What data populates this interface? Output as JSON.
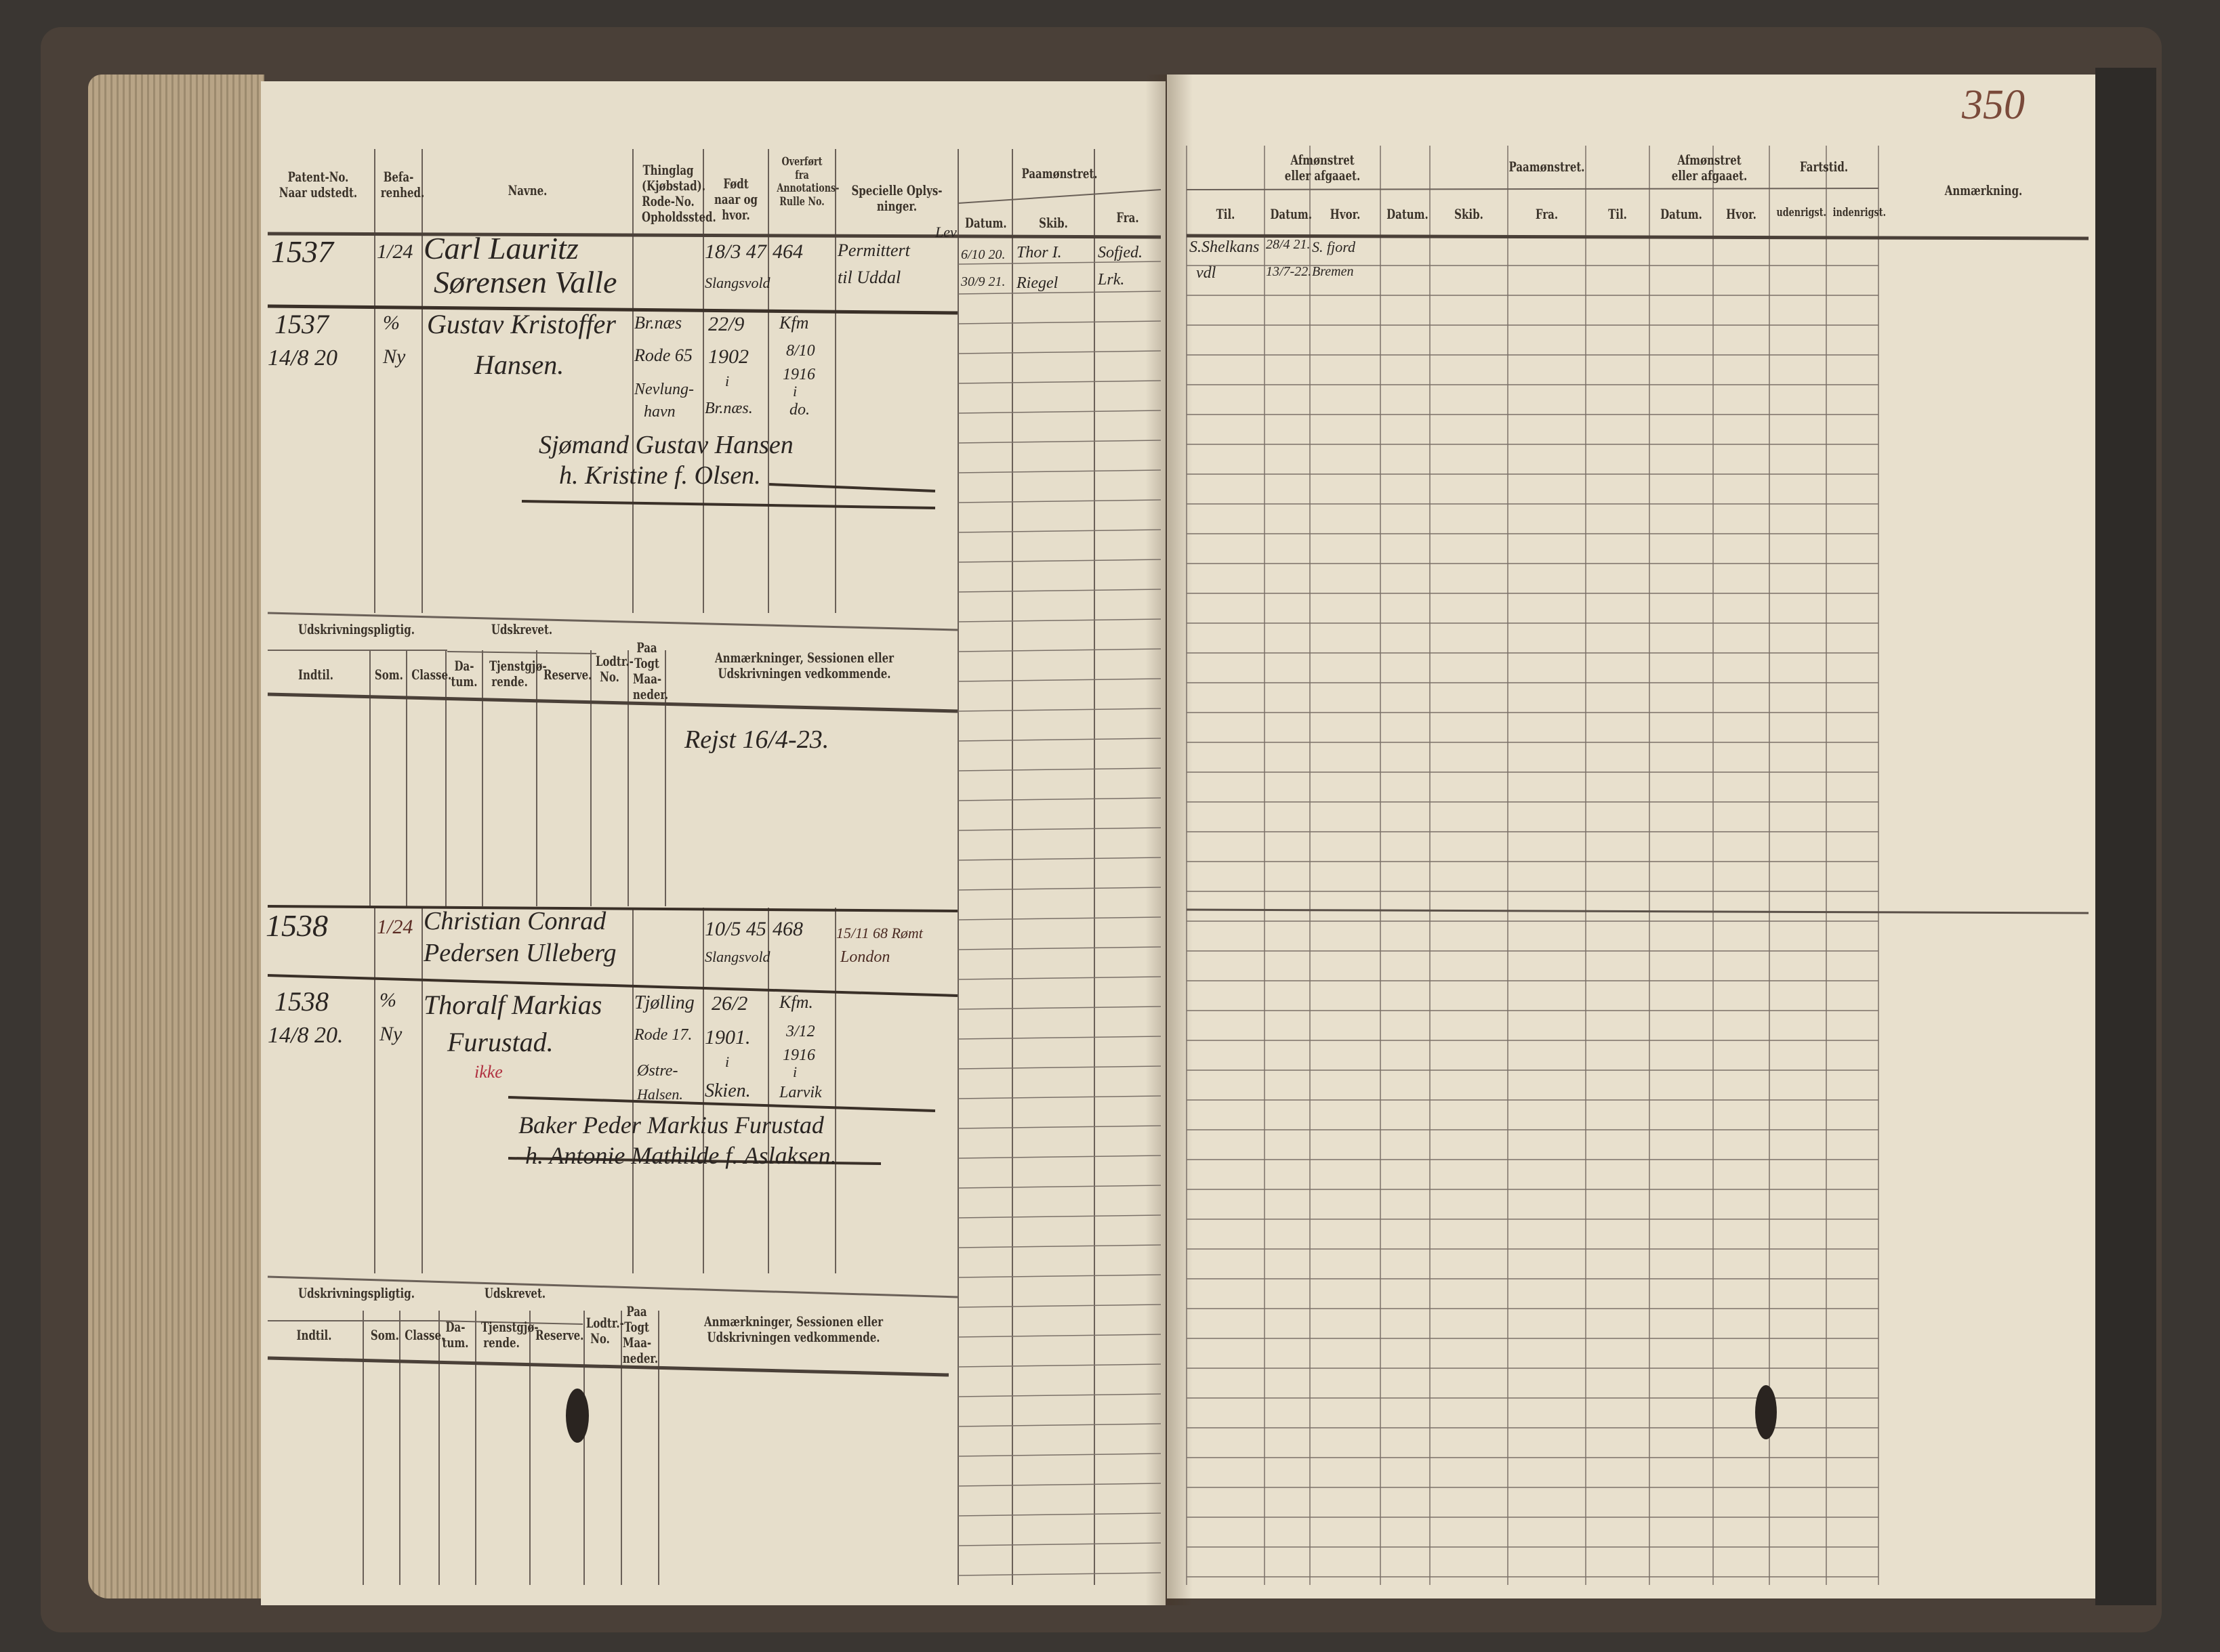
{
  "page_number": "350",
  "left_page": {
    "header": {
      "patent": "Patent-No. Naar udstedt.",
      "befarenhed": "Befa-renhed.",
      "navne": "Navne.",
      "thinglag": "Thinglag (Kjøbstad). Rode-No. Opholdssted.",
      "fodt": "Født naar og hvor.",
      "overfort": "Overført fra Annotations-Rulle No.",
      "specielle": "Specielle Oplys-ninger.",
      "paamonstret": "Paamønstret.",
      "datum": "Datum.",
      "skib": "Skib.",
      "fra": "Fra."
    },
    "entries": [
      {
        "patent": "1537",
        "befarenhed": "1/24",
        "name_line1": "Carl Lauritz",
        "name_line2": "Sørensen Valle",
        "fodt_line1": "18/3 47",
        "fodt_line2": "Slangsvold",
        "overfort": "464",
        "specielle_line1": "Permittert",
        "specielle_line2": "til Uddal",
        "specielle_note": "Lev",
        "paa_datum_1": "6/10 20.",
        "paa_datum_2": "30/9 21.",
        "paa_skib_1": "Thor I.",
        "paa_skib_2": "Riegel",
        "paa_fra_1": "Sofjed.",
        "paa_fra_2": "Lrk."
      },
      {
        "patent_line1": "1537",
        "patent_line2": "14/8 20",
        "befarenhed_line1": "%",
        "befarenhed_line2": "Ny",
        "name_line1": "Gustav Kristoffer",
        "name_line2": "Hansen.",
        "thinglag_1": "Br.næs",
        "thinglag_2": "Rode 65",
        "thinglag_3": "Nevlung-",
        "thinglag_4": "havn",
        "fodt_1": "22/9",
        "fodt_2": "1902",
        "fodt_3": "i",
        "fodt_4": "Br.næs.",
        "spec_1": "Kfm",
        "spec_2": "8/10",
        "spec_3": "1916",
        "spec_4": "i",
        "spec_5": "do.",
        "parents_1": "Sjømand Gustav Hansen",
        "parents_2": "h. Kristine f. Olsen."
      },
      {
        "patent": "1538",
        "befarenhed": "1/24",
        "name_line1": "Christian Conrad",
        "name_line2": "Pedersen Ulleberg",
        "fodt_line1": "10/5 45",
        "fodt_line2": "Slangsvold",
        "overfort": "468",
        "specielle_line1": "15/11 68 Rømt",
        "specielle_line2": "London"
      },
      {
        "patent_line1": "1538",
        "patent_line2": "14/8 20.",
        "befarenhed_line1": "%",
        "befarenhed_line2": "Ny",
        "name_line1": "Thoralf Markias",
        "name_line2": "Furustad.",
        "note_red": "ikke",
        "thinglag_1": "Tjølling",
        "thinglag_2": "Rode 17.",
        "thinglag_3": "Østre-",
        "thinglag_4": "Halsen.",
        "fodt_1": "26/2",
        "fodt_2": "1901.",
        "fodt_3": "i",
        "fodt_4": "Skien.",
        "spec_1": "Kfm.",
        "spec_2": "3/12",
        "spec_3": "1916",
        "spec_4": "i",
        "spec_5": "Larvik",
        "parents_1": "Baker Peder Markius Furustad",
        "parents_2": "h. Antonie Mathilde f. Aslaksen."
      }
    ],
    "sub_header": {
      "udskrivningspligtig": "Udskrivningspligtig.",
      "udskrevet": "Udskrevet.",
      "indtil": "Indtil.",
      "som": "Som.",
      "classe": "Classe.",
      "datum": "Da-tum.",
      "tjenstgjorende": "Tjenstgjø-rende.",
      "reserve": "Reserve.",
      "lodtr": "Lodtr.-No.",
      "paa_togt": "Paa Togt Maa-neder.",
      "anmaerkninger": "Anmærkninger, Sessionen eller Udskrivningen vedkommende."
    },
    "remark_1": "Rejst 16/4-23."
  },
  "right_page": {
    "header": {
      "afmonstret_1": "Afmønstret eller afgaaet.",
      "paamonstret": "Paamønstret.",
      "afmonstret_2": "Afmønstret eller afgaaet.",
      "fartstid": "Fartstid.",
      "anmaerkning": "Anmærkning.",
      "til": "Til.",
      "datum": "Datum.",
      "hvor": "Hvor.",
      "skib": "Skib.",
      "fra": "Fra.",
      "udenrigsk": "udenrigst.",
      "indenrigsk": "indenrigst."
    },
    "entries": [
      {
        "til": "S.Shelkans",
        "datum": "28/4 21.",
        "hvor": "S. fjord"
      },
      {
        "til": "vdl",
        "datum": "13/7-22.",
        "hvor": "Bremen"
      }
    ]
  }
}
